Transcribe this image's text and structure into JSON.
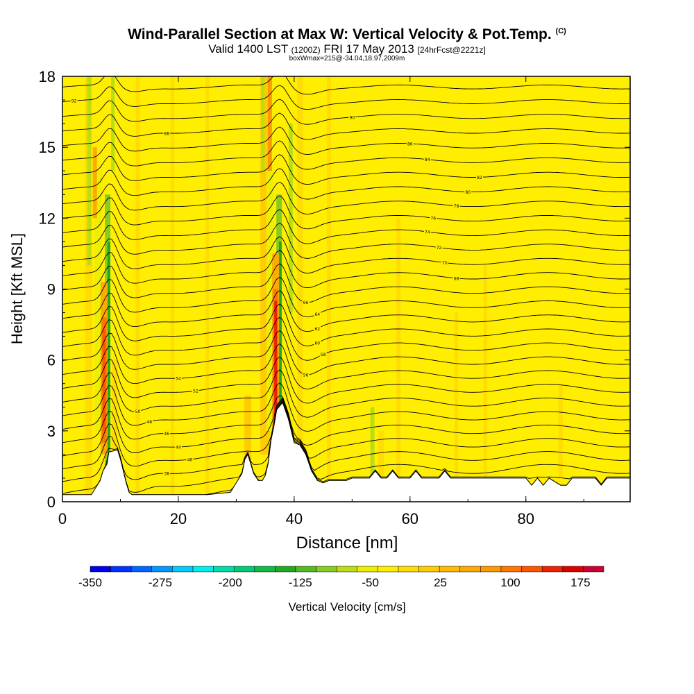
{
  "title": {
    "main": "Wind-Parallel Section at Max W: Vertical Velocity & Pot.Temp.",
    "copyright": "(C)",
    "valid": "Valid 1400 LST",
    "utc": "(1200Z)",
    "date": "FRI 17 May 2013",
    "forecast": "[24hrFcst@2221z]",
    "box": "boxWmax=215@-34.04,18.97,2009m"
  },
  "chart_data": {
    "type": "heatmap",
    "xlabel": "Distance [nm]",
    "ylabel": "Height [Kft MSL]",
    "xlim": [
      0,
      98
    ],
    "ylim": [
      0,
      18
    ],
    "xticks": [
      0,
      20,
      40,
      60,
      80
    ],
    "yticks": [
      0,
      3,
      6,
      9,
      12,
      15,
      18
    ],
    "colorbar": {
      "label": "Vertical Velocity [cm/s]",
      "tick_labels": [
        "-350",
        "-275",
        "-200",
        "-125",
        "-50",
        "25",
        "100",
        "175"
      ],
      "min": -350,
      "max": 200,
      "step": 25,
      "colors": [
        "#0000ee",
        "#0033ff",
        "#0066ff",
        "#0099ff",
        "#00ccff",
        "#00eeee",
        "#00ddaa",
        "#00cc77",
        "#11bb44",
        "#22aa22",
        "#55bb22",
        "#88cc22",
        "#bbdd11",
        "#eeee00",
        "#ffee00",
        "#ffdd00",
        "#ffcc00",
        "#ffbb00",
        "#ffaa00",
        "#ff9900",
        "#ff7700",
        "#ff5500",
        "#ee2200",
        "#dd0000",
        "#cc0033"
      ]
    },
    "updraft_cores": [
      {
        "x_nm": 7.2,
        "z_top_kft": 7.3,
        "w_cm_s": 175
      },
      {
        "x_nm": 36.8,
        "z_top_kft": 8.5,
        "w_cm_s": 200
      }
    ],
    "downdraft_bands": [
      {
        "x_nm": 7.8,
        "w_cm_s": -125
      },
      {
        "x_nm": 37.4,
        "w_cm_s": -125
      }
    ],
    "terrain_kft": [
      [
        0,
        0.3
      ],
      [
        1,
        0.3
      ],
      [
        5,
        0.3
      ],
      [
        6.5,
        0.9
      ],
      [
        7,
        1.3
      ],
      [
        7.7,
        1.6
      ],
      [
        8,
        2.1
      ],
      [
        9.5,
        2.2
      ],
      [
        10,
        1.8
      ],
      [
        10.6,
        1.2
      ],
      [
        11,
        0.8
      ],
      [
        11.5,
        0.4
      ],
      [
        12,
        0.3
      ],
      [
        24,
        0.3
      ],
      [
        25,
        0.3
      ],
      [
        29,
        0.4
      ],
      [
        30,
        0.8
      ],
      [
        31,
        1.2
      ],
      [
        31.5,
        1.8
      ],
      [
        32,
        2.0
      ],
      [
        32.5,
        1.6
      ],
      [
        33,
        1.2
      ],
      [
        33.8,
        0.9
      ],
      [
        34.5,
        0.9
      ],
      [
        35,
        1.1
      ],
      [
        35.5,
        1.6
      ],
      [
        36,
        2.6
      ],
      [
        36.5,
        3.2
      ],
      [
        37,
        3.9
      ],
      [
        38,
        4.2
      ],
      [
        39,
        3.5
      ],
      [
        40,
        2.5
      ],
      [
        41,
        2.4
      ],
      [
        42,
        2.0
      ],
      [
        43,
        1.3
      ],
      [
        44,
        0.9
      ],
      [
        45,
        0.8
      ],
      [
        46,
        0.9
      ],
      [
        47,
        0.9
      ],
      [
        48,
        0.9
      ],
      [
        49,
        0.9
      ],
      [
        50,
        1.0
      ],
      [
        53,
        1.0
      ],
      [
        54,
        1.3
      ],
      [
        55,
        1.0
      ],
      [
        56,
        1.0
      ],
      [
        57,
        1.3
      ],
      [
        58,
        1.0
      ],
      [
        60,
        1.0
      ],
      [
        61,
        1.3
      ],
      [
        62,
        1.0
      ],
      [
        65,
        1.0
      ],
      [
        66,
        1.3
      ],
      [
        67,
        1.0
      ],
      [
        80,
        1.0
      ],
      [
        81,
        0.7
      ],
      [
        82,
        1.0
      ],
      [
        83,
        0.7
      ],
      [
        84,
        1.0
      ],
      [
        86,
        0.7
      ],
      [
        87,
        0.7
      ],
      [
        88,
        1.0
      ],
      [
        92,
        1.0
      ],
      [
        93,
        0.7
      ],
      [
        94,
        1.0
      ],
      [
        98,
        1.0
      ]
    ],
    "theta_contours": {
      "count": 30,
      "labeled_values": [
        "38",
        "40",
        "44",
        "46",
        "48",
        "50",
        "52",
        "54",
        "56",
        "58",
        "60",
        "62",
        "64",
        "66",
        "68",
        "70",
        "72",
        "74",
        "76",
        "78",
        "80",
        "82",
        "84",
        "86",
        "88",
        "90",
        "92"
      ]
    }
  }
}
